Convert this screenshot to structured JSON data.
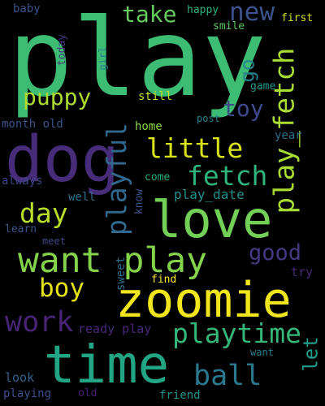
{
  "background": "#000000",
  "words": [
    {
      "text": "play",
      "color": "#3dbc74"
    },
    {
      "text": "dog",
      "color": "#472c7a"
    },
    {
      "text": "love",
      "color": "#73d056"
    },
    {
      "text": "zoomie",
      "color": "#f1e51d"
    },
    {
      "text": "time",
      "color": "#21a585"
    },
    {
      "text": "want play",
      "color": "#84d44b"
    },
    {
      "text": "play_fetch",
      "color": "#a8db34"
    },
    {
      "text": "playful",
      "color": "#31688e"
    },
    {
      "text": "playtime",
      "color": "#35b779"
    },
    {
      "text": "little",
      "color": "#d8e219"
    },
    {
      "text": "fetch",
      "color": "#2fb47c"
    },
    {
      "text": "day",
      "color": "#b8de29"
    },
    {
      "text": "boy",
      "color": "#e5e419"
    },
    {
      "text": "work",
      "color": "#482475"
    },
    {
      "text": "ball",
      "color": "#2a788e"
    },
    {
      "text": "puppy",
      "color": "#addc30"
    },
    {
      "text": "new",
      "color": "#3b528b"
    },
    {
      "text": "take",
      "color": "#65cb5e"
    },
    {
      "text": "toy",
      "color": "#3e4989"
    },
    {
      "text": "good",
      "color": "#443983"
    },
    {
      "text": "go",
      "color": "#25838e"
    },
    {
      "text": "let",
      "color": "#1f9e89"
    },
    {
      "text": "play_date",
      "color": "#20928c"
    },
    {
      "text": "ready play",
      "color": "#482878"
    },
    {
      "text": "month old",
      "color": "#3b528b"
    },
    {
      "text": "home",
      "color": "#8bd646"
    },
    {
      "text": "still",
      "color": "#c2df23"
    },
    {
      "text": "post",
      "color": "#26828e"
    },
    {
      "text": "year",
      "color": "#2e6e8e"
    },
    {
      "text": "come",
      "color": "#2ab07f"
    },
    {
      "text": "well",
      "color": "#2c728e"
    },
    {
      "text": "know",
      "color": "#3b528b"
    },
    {
      "text": "always",
      "color": "#404688"
    },
    {
      "text": "learn",
      "color": "#39568c"
    },
    {
      "text": "meet",
      "color": "#3f4788"
    },
    {
      "text": "sweet",
      "color": "#2d708e"
    },
    {
      "text": "find",
      "color": "#fde725"
    },
    {
      "text": "try",
      "color": "#482878"
    },
    {
      "text": "look",
      "color": "#33638d"
    },
    {
      "text": "playing",
      "color": "#3d4e8a"
    },
    {
      "text": "old",
      "color": "#481f70"
    },
    {
      "text": "friend",
      "color": "#21918c"
    },
    {
      "text": "want",
      "color": "#27808e"
    },
    {
      "text": "baby",
      "color": "#3b528b"
    },
    {
      "text": "happy",
      "color": "#2db27d"
    },
    {
      "text": "first",
      "color": "#d0e11c"
    },
    {
      "text": "smile",
      "color": "#5ec962"
    },
    {
      "text": "today",
      "color": "#46337e"
    },
    {
      "text": "girl",
      "color": "#287c8e"
    },
    {
      "text": "game",
      "color": "#1f9a8a"
    }
  ]
}
